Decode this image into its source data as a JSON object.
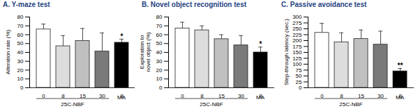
{
  "chart_data": [
    {
      "type": "bar",
      "title": "A. Y-maze test",
      "y_label": "Alteration rate (%)",
      "categories": [
        "0",
        "8",
        "15",
        "30",
        "8"
      ],
      "group_labels": [
        "25C-NBF",
        "25C-NBF",
        "25C-NBF",
        "25C-NBF",
        "MA"
      ],
      "values": [
        66,
        47,
        53,
        41,
        51
      ],
      "errors": [
        6,
        12,
        14,
        21,
        4
      ],
      "significance": [
        null,
        null,
        null,
        null,
        "*"
      ],
      "colors": [
        "#ffffff",
        "#dddddd",
        "#c0c0c0",
        "#7a7a7a",
        "#000000"
      ],
      "ylim": [
        0,
        80
      ],
      "yticks": [
        0,
        10,
        20,
        30,
        40,
        50,
        60,
        70,
        80
      ]
    },
    {
      "type": "bar",
      "title": "B. Novel object recognition test",
      "y_label": "Exploration to novel object (%)",
      "categories": [
        "0",
        "8",
        "15",
        "30",
        "8"
      ],
      "group_labels": [
        "25C-NBF",
        "25C-NBF",
        "25C-NBF",
        "25C-NBF",
        "MA"
      ],
      "values": [
        67,
        65,
        55,
        48,
        40
      ],
      "errors": [
        7,
        5,
        5,
        11,
        6
      ],
      "significance": [
        null,
        null,
        null,
        null,
        "*"
      ],
      "colors": [
        "#ffffff",
        "#dddddd",
        "#c0c0c0",
        "#7a7a7a",
        "#000000"
      ],
      "ylim": [
        0,
        80
      ],
      "yticks": [
        0,
        10,
        20,
        30,
        40,
        50,
        60,
        70,
        80
      ]
    },
    {
      "type": "bar",
      "title": "C. Passive avoidance test",
      "y_label": "Step-through latency (sec.)",
      "categories": [
        "0",
        "8",
        "15",
        "30",
        "8"
      ],
      "group_labels": [
        "25C-NBF",
        "25C-NBF",
        "25C-NBF",
        "25C-NBF",
        "MA"
      ],
      "values": [
        233,
        193,
        207,
        183,
        70
      ],
      "errors": [
        40,
        40,
        38,
        57,
        12
      ],
      "significance": [
        null,
        null,
        null,
        null,
        "**"
      ],
      "colors": [
        "#ffffff",
        "#dddddd",
        "#c0c0c0",
        "#7a7a7a",
        "#000000"
      ],
      "ylim": [
        0,
        300
      ],
      "yticks": [
        0,
        25,
        50,
        75,
        100,
        125,
        150,
        175,
        200,
        225,
        250,
        275,
        300
      ]
    }
  ]
}
